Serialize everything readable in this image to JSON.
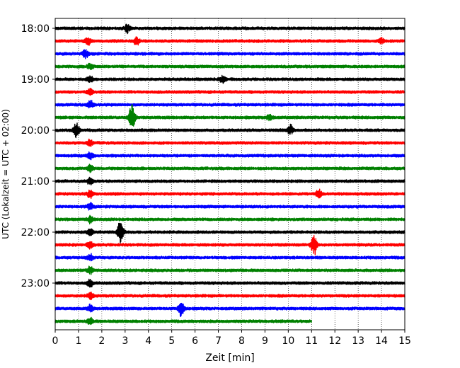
{
  "chart_data": {
    "type": "line",
    "subtype": "helicorder",
    "title": "",
    "xlabel": "Zeit  [min]",
    "ylabel": "UTC (Lokalzeit = UTC + 02:00)",
    "xlim": [
      0,
      15
    ],
    "xticks": [
      "0",
      "1",
      "2",
      "3",
      "4",
      "5",
      "6",
      "7",
      "8",
      "9",
      "10",
      "11",
      "12",
      "13",
      "14",
      "15"
    ],
    "x_grid": "dotted-vertical",
    "y_tick_labels": [
      "18:00",
      "19:00",
      "20:00",
      "21:00",
      "22:00",
      "23:00"
    ],
    "trace_interval_minutes": 15,
    "trace_colors_cycle": [
      "#000000",
      "#ff0000",
      "#0000ff",
      "#008000"
    ],
    "traces": [
      {
        "start": "18:00",
        "end_minute": 15,
        "events": [
          {
            "t": 3.1,
            "amp": 0.35
          }
        ]
      },
      {
        "start": "18:15",
        "end_minute": 15,
        "events": [
          {
            "t": 1.4,
            "amp": 0.4
          },
          {
            "t": 3.5,
            "amp": 0.3
          },
          {
            "t": 14.0,
            "amp": 0.25
          }
        ]
      },
      {
        "start": "18:30",
        "end_minute": 15,
        "events": [
          {
            "t": 1.3,
            "amp": 0.35
          }
        ]
      },
      {
        "start": "18:45",
        "end_minute": 15,
        "events": [
          {
            "t": 1.5,
            "amp": 0.25
          }
        ]
      },
      {
        "start": "19:00",
        "end_minute": 15,
        "events": [
          {
            "t": 1.5,
            "amp": 0.25
          },
          {
            "t": 7.2,
            "amp": 0.3
          }
        ]
      },
      {
        "start": "19:15",
        "end_minute": 15,
        "events": [
          {
            "t": 1.5,
            "amp": 0.3
          }
        ]
      },
      {
        "start": "19:30",
        "end_minute": 15,
        "events": [
          {
            "t": 1.5,
            "amp": 0.35
          }
        ]
      },
      {
        "start": "19:45",
        "end_minute": 15,
        "events": [
          {
            "t": 3.3,
            "amp": 1.3
          },
          {
            "t": 9.2,
            "amp": 0.3
          }
        ]
      },
      {
        "start": "20:00",
        "end_minute": 15,
        "events": [
          {
            "t": 0.9,
            "amp": 0.6
          },
          {
            "t": 10.1,
            "amp": 0.45
          }
        ]
      },
      {
        "start": "20:15",
        "end_minute": 15,
        "events": [
          {
            "t": 1.5,
            "amp": 0.3
          }
        ]
      },
      {
        "start": "20:30",
        "end_minute": 15,
        "events": [
          {
            "t": 1.5,
            "amp": 0.3
          }
        ]
      },
      {
        "start": "20:45",
        "end_minute": 15,
        "events": [
          {
            "t": 1.5,
            "amp": 0.3
          }
        ]
      },
      {
        "start": "21:00",
        "end_minute": 15,
        "events": [
          {
            "t": 1.5,
            "amp": 0.3
          }
        ]
      },
      {
        "start": "21:15",
        "end_minute": 15,
        "events": [
          {
            "t": 1.5,
            "amp": 0.3
          },
          {
            "t": 11.3,
            "amp": 0.35
          }
        ]
      },
      {
        "start": "21:30",
        "end_minute": 15,
        "events": [
          {
            "t": 1.5,
            "amp": 0.3
          }
        ]
      },
      {
        "start": "21:45",
        "end_minute": 15,
        "events": [
          {
            "t": 1.5,
            "amp": 0.3
          }
        ]
      },
      {
        "start": "22:00",
        "end_minute": 15,
        "events": [
          {
            "t": 1.5,
            "amp": 0.3
          },
          {
            "t": 2.8,
            "amp": 0.95
          }
        ]
      },
      {
        "start": "22:15",
        "end_minute": 15,
        "events": [
          {
            "t": 1.5,
            "amp": 0.3
          },
          {
            "t": 11.1,
            "amp": 0.9
          }
        ]
      },
      {
        "start": "22:30",
        "end_minute": 15,
        "events": [
          {
            "t": 1.5,
            "amp": 0.3
          }
        ]
      },
      {
        "start": "22:45",
        "end_minute": 15,
        "events": [
          {
            "t": 1.5,
            "amp": 0.3
          }
        ]
      },
      {
        "start": "23:00",
        "end_minute": 15,
        "events": [
          {
            "t": 1.5,
            "amp": 0.3
          }
        ]
      },
      {
        "start": "23:15",
        "end_minute": 15,
        "events": [
          {
            "t": 1.5,
            "amp": 0.3
          }
        ]
      },
      {
        "start": "23:30",
        "end_minute": 15,
        "events": [
          {
            "t": 1.5,
            "amp": 0.3
          },
          {
            "t": 5.4,
            "amp": 0.7
          }
        ]
      },
      {
        "start": "23:45",
        "end_minute": 11,
        "events": [
          {
            "t": 1.5,
            "amp": 0.3
          }
        ]
      }
    ]
  }
}
